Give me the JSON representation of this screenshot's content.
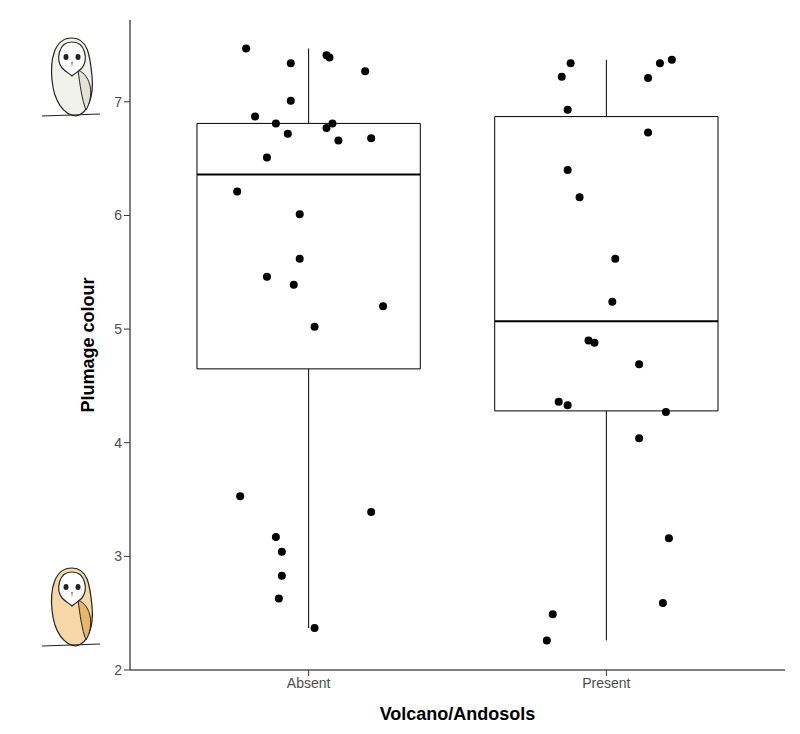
{
  "chart_data": {
    "type": "box",
    "x_label": "Volcano/Andosols",
    "y_label": "Plumage colour",
    "xlim": [
      0.4,
      2.6
    ],
    "xticks": [
      {
        "value": 1,
        "label": "Absent"
      },
      {
        "value": 2,
        "label": "Present"
      }
    ],
    "ylim": [
      2,
      7.72
    ],
    "yticks": [
      2,
      3,
      4,
      5,
      6,
      7
    ],
    "grid": false,
    "color": "#000000",
    "boxes": [
      {
        "x": 1,
        "whisker_low": 2.37,
        "q1": 4.65,
        "median": 6.36,
        "q3": 6.81,
        "whisker_high": 7.47
      },
      {
        "x": 2,
        "whisker_low": 2.26,
        "q1": 4.28,
        "median": 5.07,
        "q3": 6.87,
        "whisker_high": 7.37
      }
    ],
    "points": {
      "x": [
        0.79,
        0.94,
        1.06,
        1.07,
        1.19,
        0.94,
        0.82,
        0.89,
        1.08,
        1.06,
        0.93,
        1.21,
        1.1,
        0.86,
        0.76,
        0.97,
        0.97,
        0.86,
        0.95,
        1.25,
        1.02,
        0.77,
        1.21,
        0.89,
        0.91,
        0.91,
        0.9,
        1.02,
        1.88,
        1.85,
        2.18,
        2.22,
        2.14,
        1.87,
        2.14,
        1.87,
        1.91,
        2.03,
        2.02,
        1.94,
        1.96,
        2.11,
        1.84,
        1.87,
        2.2,
        2.11,
        2.21,
        2.19,
        1.82,
        1.8
      ],
      "y": [
        7.47,
        7.34,
        7.41,
        7.39,
        7.27,
        7.01,
        6.87,
        6.81,
        6.81,
        6.77,
        6.72,
        6.68,
        6.66,
        6.51,
        6.21,
        6.01,
        5.62,
        5.46,
        5.39,
        5.2,
        5.02,
        3.53,
        3.39,
        3.17,
        3.04,
        2.83,
        2.63,
        2.37,
        7.34,
        7.22,
        7.34,
        7.37,
        7.21,
        6.93,
        6.73,
        6.4,
        6.16,
        5.62,
        5.24,
        4.9,
        4.88,
        4.69,
        4.36,
        4.33,
        4.27,
        4.04,
        3.16,
        2.59,
        2.49,
        2.26
      ]
    }
  }
}
